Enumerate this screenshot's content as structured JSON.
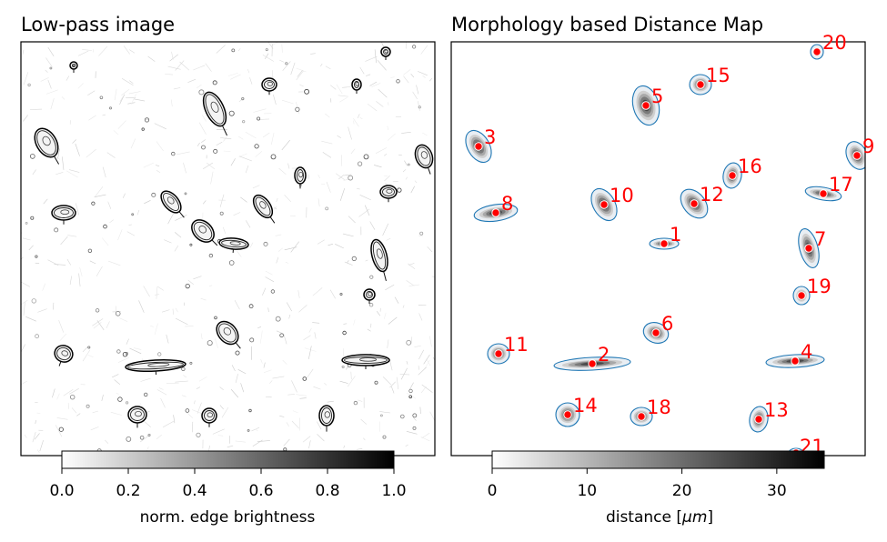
{
  "chart_data": [
    {
      "type": "heatmap",
      "title": "Low-pass image",
      "colorbar": {
        "label": "norm. edge brightness",
        "range": [
          0.0,
          1.0
        ],
        "ticks": [
          "0.0",
          "0.2",
          "0.4",
          "0.6",
          "0.8",
          "1.0"
        ],
        "colormap": "gray_r"
      }
    },
    {
      "type": "heatmap",
      "title": "Morphology based Distance Map",
      "colorbar": {
        "label": "distance [",
        "label_mu": "μm",
        "label_end": "]",
        "range": [
          0,
          35
        ],
        "ticks": [
          "0",
          "10",
          "20",
          "30"
        ],
        "colormap": "gray_r"
      },
      "marker_color": "#ff0000",
      "contour_color": "#1f77b4",
      "cell_labels": [
        "1",
        "2",
        "3",
        "4",
        "5",
        "6",
        "7",
        "8",
        "9",
        "10",
        "11",
        "12",
        "13",
        "14",
        "15",
        "16",
        "17",
        "18",
        "19",
        "20",
        "21"
      ]
    }
  ]
}
